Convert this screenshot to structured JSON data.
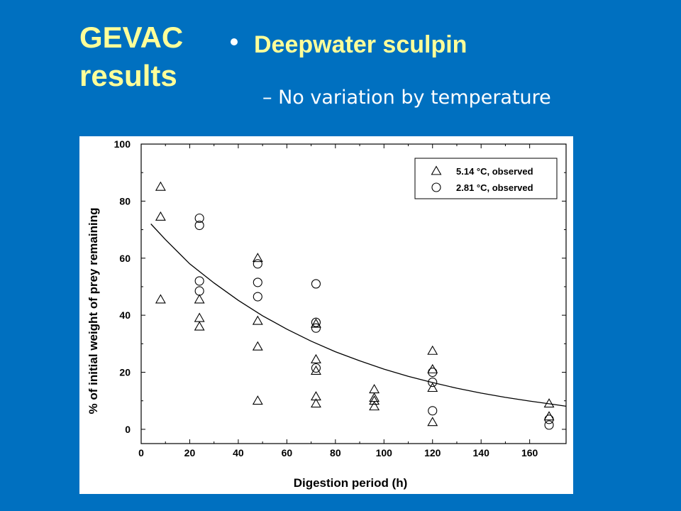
{
  "slide": {
    "title_line1": "GEVAC",
    "title_line2": "results",
    "bullet": "Deepwater sculpin",
    "sub_dash": "–",
    "sub_bullet": "No variation by temperature"
  },
  "colors": {
    "background": "#0070C0",
    "title": "#FFFF99",
    "subtext": "#FFFFFF"
  },
  "chart_data": {
    "type": "scatter",
    "xlabel": "Digestion period (h)",
    "ylabel": "% of initial weight of prey remaining",
    "xlim": [
      0,
      175
    ],
    "ylim": [
      -5,
      100
    ],
    "xticks": [
      0,
      20,
      40,
      60,
      80,
      100,
      120,
      140,
      160
    ],
    "yticks": [
      0,
      20,
      40,
      60,
      80,
      100
    ],
    "grid": false,
    "legend_position": "top-right",
    "series": [
      {
        "name": "5.14 °C, observed",
        "marker": "triangle",
        "points": [
          [
            8,
            85
          ],
          [
            8,
            74.5
          ],
          [
            8,
            45.5
          ],
          [
            24,
            45.5
          ],
          [
            24,
            39
          ],
          [
            24,
            36
          ],
          [
            48,
            60
          ],
          [
            48,
            38
          ],
          [
            48,
            29
          ],
          [
            48,
            10
          ],
          [
            72,
            24.5
          ],
          [
            72,
            20.5
          ],
          [
            72,
            37
          ],
          [
            72,
            11.5
          ],
          [
            72,
            9
          ],
          [
            96,
            14
          ],
          [
            96,
            11
          ],
          [
            96,
            10
          ],
          [
            96,
            8
          ],
          [
            120,
            27.5
          ],
          [
            120,
            21
          ],
          [
            120,
            14.5
          ],
          [
            120,
            2.5
          ],
          [
            168,
            9
          ],
          [
            168,
            4.5
          ]
        ]
      },
      {
        "name": "2.81 °C, observed",
        "marker": "circle",
        "points": [
          [
            24,
            74
          ],
          [
            24,
            71.5
          ],
          [
            24,
            52
          ],
          [
            24,
            48.5
          ],
          [
            48,
            58
          ],
          [
            48,
            51.5
          ],
          [
            48,
            46.5
          ],
          [
            72,
            51
          ],
          [
            72,
            37.5
          ],
          [
            72,
            35.5
          ],
          [
            72,
            21.5
          ],
          [
            120,
            20
          ],
          [
            120,
            16.5
          ],
          [
            120,
            6.5
          ],
          [
            168,
            3.5
          ],
          [
            168,
            1.5
          ]
        ]
      }
    ],
    "fit_curve": {
      "type": "exponential",
      "points": [
        [
          4,
          72
        ],
        [
          10,
          66.5
        ],
        [
          20,
          58
        ],
        [
          30,
          51.3
        ],
        [
          40,
          45.2
        ],
        [
          50,
          39.8
        ],
        [
          60,
          35.1
        ],
        [
          70,
          30.9
        ],
        [
          80,
          27.2
        ],
        [
          90,
          24
        ],
        [
          100,
          21.1
        ],
        [
          110,
          18.6
        ],
        [
          120,
          16.4
        ],
        [
          130,
          14.4
        ],
        [
          140,
          12.7
        ],
        [
          150,
          11.2
        ],
        [
          160,
          9.9
        ],
        [
          170,
          8.7
        ],
        [
          175,
          8.1
        ]
      ]
    }
  }
}
